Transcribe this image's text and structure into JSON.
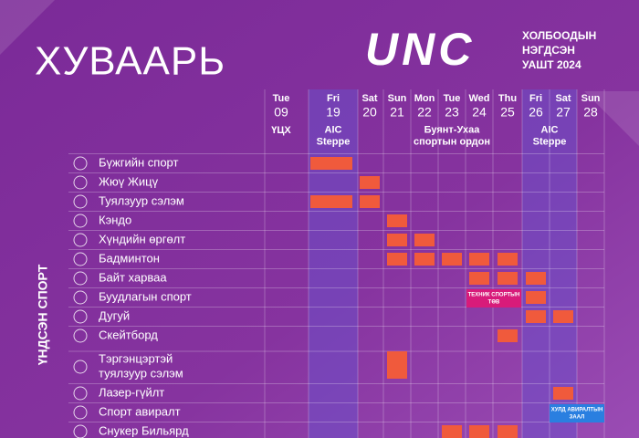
{
  "header": {
    "title": "ХУВААРЬ",
    "logo": "UNC",
    "logo_text": [
      "ХОЛБООДЫН",
      "НЭГДСЭН",
      "УАШТ 2024"
    ]
  },
  "days": [
    {
      "weekday": "Tue",
      "date": "09"
    },
    {
      "weekday": "Fri",
      "date": "19"
    },
    {
      "weekday": "Sat",
      "date": "20"
    },
    {
      "weekday": "Sun",
      "date": "21"
    },
    {
      "weekday": "Mon",
      "date": "22"
    },
    {
      "weekday": "Tue",
      "date": "23"
    },
    {
      "weekday": "Wed",
      "date": "24"
    },
    {
      "weekday": "Thu",
      "date": "25"
    },
    {
      "weekday": "Fri",
      "date": "26"
    },
    {
      "weekday": "Sat",
      "date": "27"
    },
    {
      "weekday": "Sun",
      "date": "28"
    }
  ],
  "venues": [
    {
      "lines": [
        "ҮЦХ"
      ]
    },
    {
      "lines": [
        "AIC",
        "Steppe"
      ]
    },
    {
      "lines": [
        "Буянт-Ухаа",
        "спортын ордон"
      ]
    },
    {
      "lines": [
        "AIC",
        "Steppe"
      ]
    }
  ],
  "section_label": "ҮНДСЭН СПОРТ",
  "sports": [
    {
      "lines": [
        "Бүжгийн спорт"
      ]
    },
    {
      "lines": [
        "Жюү Жицү"
      ]
    },
    {
      "lines": [
        "Туялзуур сэлэм"
      ]
    },
    {
      "lines": [
        "Кэндо"
      ]
    },
    {
      "lines": [
        "Хүндийн өргөлт"
      ]
    },
    {
      "lines": [
        "Бадминтон"
      ]
    },
    {
      "lines": [
        "Байт харваа"
      ]
    },
    {
      "lines": [
        "Буудлагын спорт"
      ]
    },
    {
      "lines": [
        "Дугуй"
      ]
    },
    {
      "lines": [
        "Скейтборд"
      ]
    },
    {
      "lines": [
        "Тэргэнцэртэй",
        "туялзуур сэлэм"
      ]
    },
    {
      "lines": [
        "Лазер-гүйлт"
      ]
    },
    {
      "lines": [
        "Спорт авиралт"
      ]
    },
    {
      "lines": [
        "Снукер Бильярд"
      ]
    }
  ],
  "venue_tags": [
    {
      "lines": [
        "ТЕХНИК СПОРТЫН",
        "ТӨВ"
      ]
    },
    {
      "lines": [
        "ХУЛД АВИРАЛТЫН",
        "ЗААЛ"
      ]
    }
  ]
}
